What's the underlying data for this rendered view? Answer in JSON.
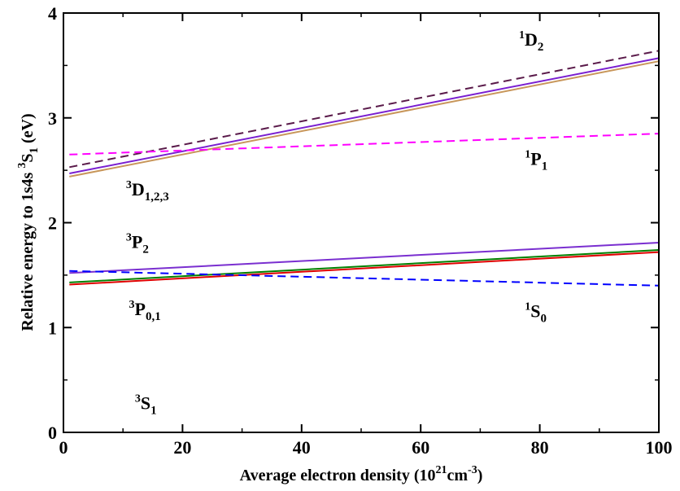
{
  "chart_data": {
    "type": "line",
    "xlim": [
      0,
      100
    ],
    "ylim": [
      0,
      4
    ],
    "xticks": [
      0,
      20,
      40,
      60,
      80,
      100
    ],
    "yticks": [
      0,
      1,
      2,
      3,
      4
    ],
    "xlabel": {
      "main": "Average electron density (10",
      "sup1": "21",
      "mid": "cm",
      "sup2": "-3",
      "end": ")"
    },
    "ylabel": {
      "main": "Relative energy to 1s4s ",
      "sup": "3",
      "sym": "S",
      "sub": "1",
      "end": " (eV)"
    },
    "grid": false,
    "series": [
      {
        "color": "#5a1a4a",
        "dashed": true,
        "x": [
          1,
          100
        ],
        "y": [
          2.53,
          3.64
        ]
      },
      {
        "color": "#c8965a",
        "dashed": false,
        "x": [
          1,
          100
        ],
        "y": [
          2.44,
          3.54
        ]
      },
      {
        "color": "#7a1fd0",
        "dashed": false,
        "x": [
          1,
          100
        ],
        "y": [
          2.47,
          3.57
        ]
      },
      {
        "color": "#ff00ff",
        "dashed": true,
        "x": [
          1,
          100
        ],
        "y": [
          2.65,
          2.85
        ]
      },
      {
        "color": "#7a2fd0",
        "dashed": false,
        "x": [
          1,
          100
        ],
        "y": [
          1.52,
          1.81
        ]
      },
      {
        "color": "#008000",
        "dashed": false,
        "x": [
          1,
          100
        ],
        "y": [
          1.43,
          1.74
        ]
      },
      {
        "color": "#e00000",
        "dashed": false,
        "x": [
          1,
          100
        ],
        "y": [
          1.41,
          1.72
        ]
      },
      {
        "color": "#0000ff",
        "dashed": true,
        "x": [
          1,
          100
        ],
        "y": [
          1.54,
          1.4
        ]
      }
    ],
    "annotations": [
      {
        "id": "1D2",
        "sup": "1",
        "sym": "D",
        "sub": "2",
        "x": 76.5,
        "y": 3.69
      },
      {
        "id": "3D123",
        "sup": "3",
        "sym": "D",
        "sub": "1,2,3",
        "x": 10.5,
        "y": 2.26
      },
      {
        "id": "1P1",
        "sup": "1",
        "sym": "P",
        "sub": "1",
        "x": 77.5,
        "y": 2.55
      },
      {
        "id": "3P2",
        "sup": "3",
        "sym": "P",
        "sub": "2",
        "x": 10.5,
        "y": 1.76
      },
      {
        "id": "3P01",
        "sup": "3",
        "sym": "P",
        "sub": "0,1",
        "x": 11.0,
        "y": 1.12
      },
      {
        "id": "1S0",
        "sup": "1",
        "sym": "S",
        "sub": "0",
        "x": 77.5,
        "y": 1.1
      },
      {
        "id": "3S1",
        "sup": "3",
        "sym": "S",
        "sub": "1",
        "x": 12.0,
        "y": 0.22
      }
    ]
  }
}
